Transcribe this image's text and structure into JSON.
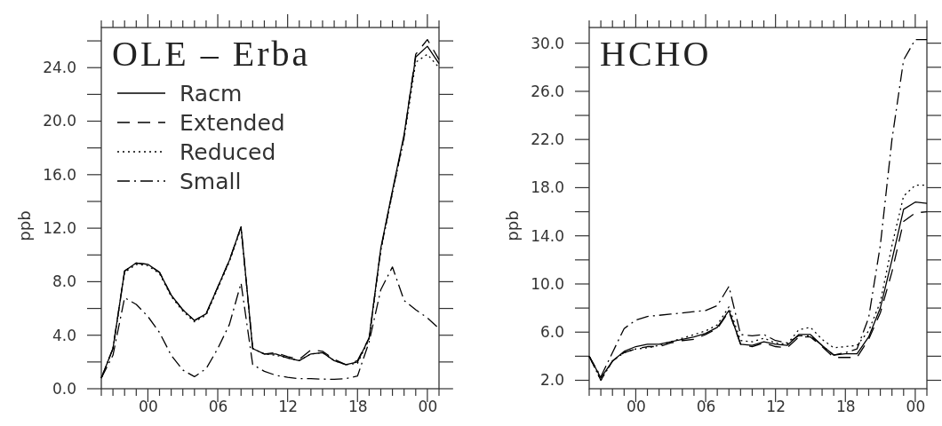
{
  "chart_data": [
    {
      "type": "line",
      "title": "OLE – Erba",
      "ylabel": "ppb",
      "legend": "top left",
      "x": [
        -4,
        -3,
        -2,
        -1,
        0,
        1,
        2,
        3,
        4,
        5,
        6,
        7,
        8,
        9,
        10,
        11,
        12,
        13,
        14,
        15,
        16,
        17,
        18,
        19,
        20,
        21,
        22,
        23,
        24,
        25
      ],
      "xlim": [
        -4,
        25
      ],
      "xticks": [
        {
          "value": -4,
          "label": null
        },
        {
          "value": -3,
          "label": null
        },
        {
          "value": -2,
          "label": null
        },
        {
          "value": -1,
          "label": null
        },
        {
          "value": 0,
          "label": "00"
        },
        {
          "value": 1,
          "label": null
        },
        {
          "value": 2,
          "label": null
        },
        {
          "value": 3,
          "label": null
        },
        {
          "value": 4,
          "label": null
        },
        {
          "value": 5,
          "label": null
        },
        {
          "value": 6,
          "label": "06"
        },
        {
          "value": 7,
          "label": null
        },
        {
          "value": 8,
          "label": null
        },
        {
          "value": 9,
          "label": null
        },
        {
          "value": 10,
          "label": null
        },
        {
          "value": 11,
          "label": null
        },
        {
          "value": 12,
          "label": "12"
        },
        {
          "value": 13,
          "label": null
        },
        {
          "value": 14,
          "label": null
        },
        {
          "value": 15,
          "label": null
        },
        {
          "value": 16,
          "label": null
        },
        {
          "value": 17,
          "label": null
        },
        {
          "value": 18,
          "label": "18"
        },
        {
          "value": 19,
          "label": null
        },
        {
          "value": 20,
          "label": null
        },
        {
          "value": 21,
          "label": null
        },
        {
          "value": 22,
          "label": null
        },
        {
          "value": 23,
          "label": null
        },
        {
          "value": 24,
          "label": "00"
        },
        {
          "value": 25,
          "label": null
        }
      ],
      "ylim": [
        0,
        27
      ],
      "yticks": [
        {
          "value": 0,
          "label": "0.0"
        },
        {
          "value": 2,
          "label": null
        },
        {
          "value": 4,
          "label": "4.0"
        },
        {
          "value": 6,
          "label": null
        },
        {
          "value": 8,
          "label": "8.0"
        },
        {
          "value": 10,
          "label": null
        },
        {
          "value": 12,
          "label": "12.0"
        },
        {
          "value": 14,
          "label": null
        },
        {
          "value": 16,
          "label": "16.0"
        },
        {
          "value": 18,
          "label": null
        },
        {
          "value": 20,
          "label": "20.0"
        },
        {
          "value": 22,
          "label": null
        },
        {
          "value": 24,
          "label": "24.0"
        },
        {
          "value": 26,
          "label": null
        }
      ],
      "series": [
        {
          "name": "Racm",
          "color": "#000000",
          "line_style": "solid",
          "values": [
            0.8,
            3.0,
            8.8,
            9.4,
            9.3,
            8.7,
            7.0,
            5.9,
            5.1,
            5.6,
            7.6,
            9.6,
            12.1,
            3.0,
            2.6,
            2.6,
            2.3,
            2.1,
            2.6,
            2.7,
            2.1,
            1.8,
            2.0,
            3.8,
            10.5,
            14.8,
            19.0,
            24.8,
            25.6,
            24.3
          ]
        },
        {
          "name": "Extended",
          "color": "#000000",
          "line_style": "dashed",
          "values": [
            0.8,
            3.0,
            8.8,
            9.4,
            9.3,
            8.7,
            7.0,
            5.9,
            5.1,
            5.6,
            7.6,
            9.6,
            12.1,
            3.0,
            2.6,
            2.7,
            2.4,
            2.2,
            2.9,
            2.8,
            2.2,
            1.8,
            2.1,
            3.8,
            10.4,
            14.7,
            18.8,
            25.0,
            26.1,
            24.6
          ]
        },
        {
          "name": "Reduced",
          "color": "#000000",
          "line_style": "dotted",
          "values": [
            0.8,
            3.0,
            8.7,
            9.3,
            9.2,
            8.6,
            6.9,
            5.8,
            5.0,
            5.5,
            7.5,
            9.5,
            12.0,
            3.0,
            2.6,
            2.5,
            2.3,
            2.1,
            2.6,
            2.7,
            2.1,
            1.8,
            1.9,
            3.7,
            10.3,
            14.6,
            18.7,
            24.4,
            25.0,
            24.0
          ]
        },
        {
          "name": "Small",
          "color": "#000000",
          "line_style": "dashdot",
          "values": [
            0.8,
            2.5,
            6.8,
            6.3,
            5.4,
            4.2,
            2.5,
            1.4,
            0.9,
            1.5,
            3.0,
            4.8,
            7.9,
            1.8,
            1.3,
            1.0,
            0.85,
            0.75,
            0.75,
            0.72,
            0.7,
            0.75,
            0.95,
            3.5,
            7.4,
            9.1,
            6.6,
            5.9,
            5.3,
            4.5
          ]
        }
      ]
    },
    {
      "type": "line",
      "title": "HCHO",
      "ylabel": "ppb",
      "x": [
        -4,
        -3,
        -2,
        -1,
        0,
        1,
        2,
        3,
        4,
        5,
        6,
        7,
        8,
        9,
        10,
        11,
        12,
        13,
        14,
        15,
        16,
        17,
        18,
        19,
        20,
        21,
        22,
        23,
        24,
        25
      ],
      "xlim": [
        -4,
        25
      ],
      "xticks": [
        {
          "value": -4,
          "label": null
        },
        {
          "value": -3,
          "label": null
        },
        {
          "value": -2,
          "label": null
        },
        {
          "value": -1,
          "label": null
        },
        {
          "value": 0,
          "label": "00"
        },
        {
          "value": 1,
          "label": null
        },
        {
          "value": 2,
          "label": null
        },
        {
          "value": 3,
          "label": null
        },
        {
          "value": 4,
          "label": null
        },
        {
          "value": 5,
          "label": null
        },
        {
          "value": 6,
          "label": "06"
        },
        {
          "value": 7,
          "label": null
        },
        {
          "value": 8,
          "label": null
        },
        {
          "value": 9,
          "label": null
        },
        {
          "value": 10,
          "label": null
        },
        {
          "value": 11,
          "label": null
        },
        {
          "value": 12,
          "label": "12"
        },
        {
          "value": 13,
          "label": null
        },
        {
          "value": 14,
          "label": null
        },
        {
          "value": 15,
          "label": null
        },
        {
          "value": 16,
          "label": null
        },
        {
          "value": 17,
          "label": null
        },
        {
          "value": 18,
          "label": "18"
        },
        {
          "value": 19,
          "label": null
        },
        {
          "value": 20,
          "label": null
        },
        {
          "value": 21,
          "label": null
        },
        {
          "value": 22,
          "label": null
        },
        {
          "value": 23,
          "label": null
        },
        {
          "value": 24,
          "label": "00"
        },
        {
          "value": 25,
          "label": null
        }
      ],
      "ylim": [
        1.3,
        31.3
      ],
      "yticks": [
        {
          "value": 2,
          "label": "2.0"
        },
        {
          "value": 4,
          "label": null
        },
        {
          "value": 6,
          "label": "6.0"
        },
        {
          "value": 8,
          "label": null
        },
        {
          "value": 10,
          "label": "10.0"
        },
        {
          "value": 12,
          "label": null
        },
        {
          "value": 14,
          "label": "14.0"
        },
        {
          "value": 16,
          "label": null
        },
        {
          "value": 18,
          "label": "18.0"
        },
        {
          "value": 20,
          "label": null
        },
        {
          "value": 22,
          "label": "22.0"
        },
        {
          "value": 24,
          "label": null
        },
        {
          "value": 26,
          "label": "26.0"
        },
        {
          "value": 28,
          "label": null
        },
        {
          "value": 30,
          "label": "30.0"
        }
      ],
      "series": [
        {
          "color": "#000000",
          "line_style": "solid",
          "values": [
            4.0,
            2.2,
            3.6,
            4.4,
            4.8,
            5.0,
            5.0,
            5.2,
            5.4,
            5.6,
            5.9,
            6.4,
            7.8,
            5.0,
            4.9,
            5.2,
            5.0,
            4.9,
            5.8,
            5.8,
            4.9,
            4.1,
            4.2,
            4.2,
            5.6,
            8.0,
            12.0,
            16.2,
            16.8,
            16.7
          ]
        },
        {
          "color": "#000000",
          "line_style": "dashed",
          "values": [
            4.0,
            2.0,
            3.6,
            4.3,
            4.6,
            4.8,
            4.8,
            5.1,
            5.3,
            5.4,
            5.8,
            6.3,
            7.7,
            5.0,
            4.8,
            5.1,
            4.8,
            4.7,
            5.6,
            5.6,
            4.8,
            3.9,
            3.9,
            3.9,
            5.4,
            7.6,
            11.0,
            15.2,
            15.9,
            16.0
          ]
        },
        {
          "color": "#000000",
          "line_style": "dotted",
          "values": [
            4.0,
            2.0,
            3.6,
            4.3,
            4.6,
            4.7,
            4.9,
            5.2,
            5.5,
            5.8,
            6.1,
            6.6,
            8.1,
            5.3,
            5.2,
            5.5,
            5.1,
            5.0,
            6.2,
            6.4,
            5.4,
            4.7,
            4.8,
            4.9,
            6.1,
            8.5,
            13.2,
            17.3,
            18.2,
            18.2
          ]
        },
        {
          "color": "#000000",
          "line_style": "dashdot",
          "values": [
            4.0,
            2.3,
            4.3,
            6.3,
            7.0,
            7.3,
            7.4,
            7.5,
            7.6,
            7.7,
            7.8,
            8.2,
            9.8,
            5.8,
            5.7,
            5.8,
            5.3,
            5.1,
            5.7,
            5.7,
            4.9,
            4.1,
            4.3,
            4.6,
            7.2,
            13.2,
            22.0,
            28.6,
            30.3,
            30.3
          ]
        }
      ]
    }
  ]
}
